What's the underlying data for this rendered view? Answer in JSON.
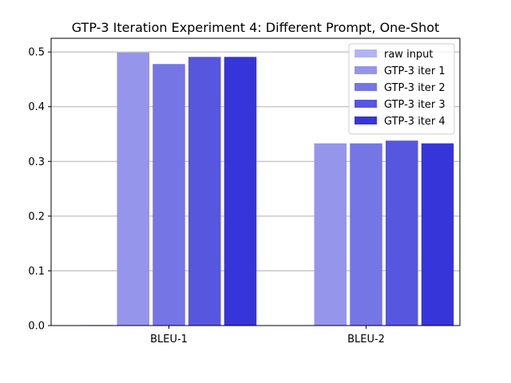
{
  "chart_data": {
    "type": "bar",
    "title": "GTP-3 Iteration Experiment 4: Different Prompt, One-Shot",
    "xlabel": "",
    "ylabel": "",
    "categories": [
      "BLEU-1",
      "BLEU-2"
    ],
    "ylim": [
      0,
      0.525
    ],
    "yticks": [
      "0.0",
      "0.1",
      "0.2",
      "0.3",
      "0.4",
      "0.5"
    ],
    "grid": "y",
    "legend_position": "top-right",
    "series": [
      {
        "name": "raw input",
        "color": "#b3b3f0",
        "values": [
          0.001,
          0.0
        ]
      },
      {
        "name": "GTP-3 iter 1",
        "color": "#9595eb",
        "values": [
          0.499,
          0.333
        ]
      },
      {
        "name": "GTP-3 iter 2",
        "color": "#7575e5",
        "values": [
          0.478,
          0.333
        ]
      },
      {
        "name": "GTP-3 iter 3",
        "color": "#5656df",
        "values": [
          0.491,
          0.338
        ]
      },
      {
        "name": "GTP-3 iter 4",
        "color": "#3535d9",
        "values": [
          0.491,
          0.333
        ]
      }
    ]
  }
}
